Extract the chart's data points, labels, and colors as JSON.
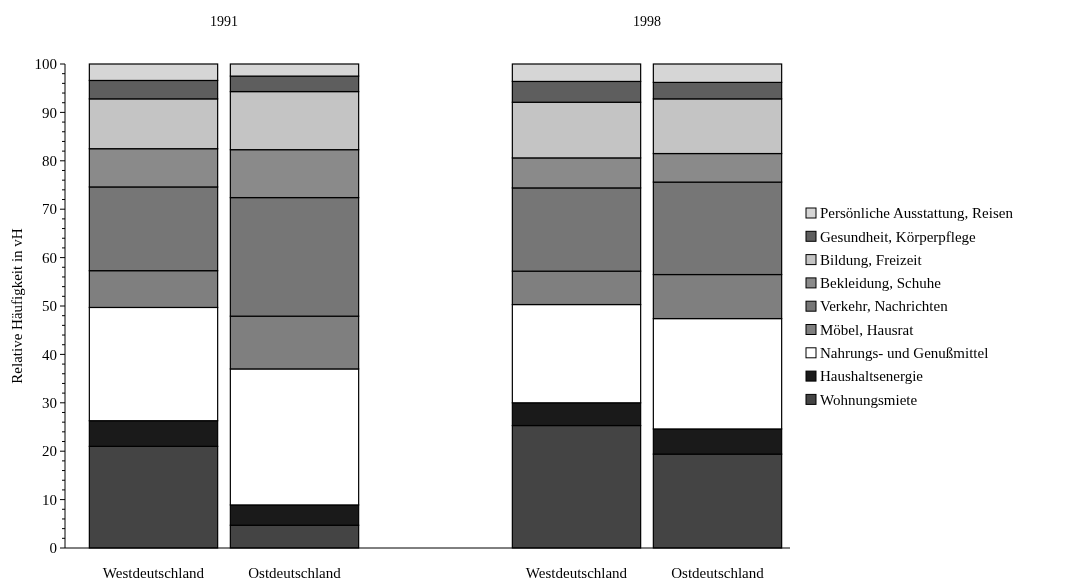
{
  "chart_data": {
    "type": "bar",
    "stacked": true,
    "ylabel": "Relative Häufigkeit in vH",
    "categories": [
      "Westdeutschland",
      "Ostdeutschland",
      null,
      "Westdeutschland",
      "Ostdeutschland"
    ],
    "annotations": [
      "1991",
      "1998"
    ],
    "ylim": [
      0,
      100
    ],
    "yticks": [
      0,
      {
        "value": 2,
        "label": null
      },
      {
        "value": 4,
        "label": null
      },
      {
        "value": 6,
        "label": null
      },
      {
        "value": 8,
        "label": null
      },
      10,
      {
        "value": 12,
        "label": null
      },
      {
        "value": 14,
        "label": null
      },
      {
        "value": 16,
        "label": null
      },
      {
        "value": 18,
        "label": null
      },
      20,
      {
        "value": 22,
        "label": null
      },
      {
        "value": 24,
        "label": null
      },
      {
        "value": 26,
        "label": null
      },
      {
        "value": 28,
        "label": null
      },
      30,
      {
        "value": 32,
        "label": null
      },
      {
        "value": 34,
        "label": null
      },
      {
        "value": 36,
        "label": null
      },
      {
        "value": 38,
        "label": null
      },
      40,
      {
        "value": 42,
        "label": null
      },
      {
        "value": 44,
        "label": null
      },
      {
        "value": 46,
        "label": null
      },
      {
        "value": 48,
        "label": null
      },
      50,
      {
        "value": 52,
        "label": null
      },
      {
        "value": 54,
        "label": null
      },
      {
        "value": 56,
        "label": null
      },
      {
        "value": 58,
        "label": null
      },
      60,
      {
        "value": 62,
        "label": null
      },
      {
        "value": 64,
        "label": null
      },
      {
        "value": 66,
        "label": null
      },
      {
        "value": 68,
        "label": null
      },
      70,
      {
        "value": 72,
        "label": null
      },
      {
        "value": 74,
        "label": null
      },
      {
        "value": 76,
        "label": null
      },
      {
        "value": 78,
        "label": null
      },
      80,
      {
        "value": 82,
        "label": null
      },
      {
        "value": 84,
        "label": null
      },
      {
        "value": 86,
        "label": null
      },
      {
        "value": 88,
        "label": null
      },
      90,
      {
        "value": 92,
        "label": null
      },
      {
        "value": 94,
        "label": null
      },
      {
        "value": 96,
        "label": null
      },
      {
        "value": 98,
        "label": null
      },
      100
    ],
    "legend": "right",
    "series": [
      {
        "name": "Wohnungsmiete",
        "color": "#444444",
        "values": [
          21,
          4.7,
          null,
          25.3,
          19.4
        ]
      },
      {
        "name": "Haushaltsenergie",
        "color": "#1a1a1a",
        "values": [
          5.3,
          4.2,
          null,
          4.7,
          5.2
        ]
      },
      {
        "name": "Nahrungs- und Genußmittel",
        "color": "#ffffff",
        "values": [
          23.4,
          28.1,
          null,
          20.3,
          22.8
        ]
      },
      {
        "name": "Möbel, Hausrat",
        "color": "#7f7f7f",
        "values": [
          7.6,
          10.9,
          null,
          6.9,
          9.1
        ]
      },
      {
        "name": "Verkehr, Nachrichten",
        "color": "#767676",
        "values": [
          17.3,
          24.5,
          null,
          17.2,
          19.1
        ]
      },
      {
        "name": "Bekleidung, Schuhe",
        "color": "#8a8a8a",
        "values": [
          7.9,
          9.9,
          null,
          6.2,
          5.9
        ]
      },
      {
        "name": "Bildung, Freizeit",
        "color": "#c4c4c4",
        "values": [
          10.3,
          12,
          null,
          11.5,
          11.3
        ]
      },
      {
        "name": "Gesundheit, Körperpflege",
        "color": "#5e5e5e",
        "values": [
          3.8,
          3.2,
          null,
          4.3,
          3.4
        ]
      },
      {
        "name": "Persönliche Ausstattung, Reisen",
        "color": "#d6d6d6",
        "values": [
          3.4,
          2.5,
          null,
          3.6,
          3.8
        ]
      }
    ]
  }
}
